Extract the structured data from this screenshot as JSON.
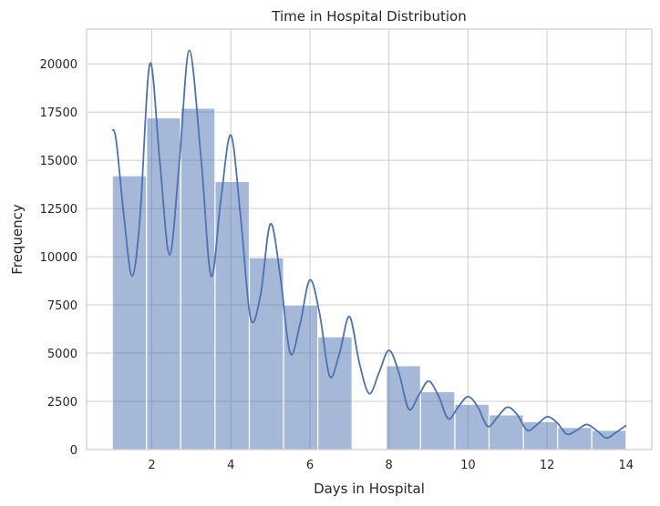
{
  "chart_data": {
    "type": "bar",
    "title": "Time in Hospital Distribution",
    "xlabel": "Days in Hospital",
    "ylabel": "Frequency",
    "xlim": [
      0.35,
      14.65
    ],
    "ylim": [
      0,
      21800
    ],
    "x_ticks": [
      2,
      4,
      6,
      8,
      10,
      12,
      14
    ],
    "y_ticks": [
      0,
      2500,
      5000,
      7500,
      10000,
      12500,
      15000,
      17500,
      20000
    ],
    "grid": true,
    "bins": [
      {
        "start": 1.0,
        "end": 1.867,
        "value": 14200
      },
      {
        "start": 1.867,
        "end": 2.733,
        "value": 17200
      },
      {
        "start": 2.733,
        "end": 3.6,
        "value": 17700
      },
      {
        "start": 3.6,
        "end": 4.467,
        "value": 13900
      },
      {
        "start": 4.467,
        "end": 5.333,
        "value": 9950
      },
      {
        "start": 5.333,
        "end": 6.2,
        "value": 7500
      },
      {
        "start": 6.2,
        "end": 7.067,
        "value": 5850
      },
      {
        "start": 7.067,
        "end": 7.933,
        "value": 0
      },
      {
        "start": 7.933,
        "end": 8.8,
        "value": 4350
      },
      {
        "start": 8.8,
        "end": 9.667,
        "value": 3000
      },
      {
        "start": 9.667,
        "end": 10.533,
        "value": 2350
      },
      {
        "start": 10.533,
        "end": 11.4,
        "value": 1800
      },
      {
        "start": 11.4,
        "end": 12.267,
        "value": 1450
      },
      {
        "start": 12.267,
        "end": 13.133,
        "value": 1150
      },
      {
        "start": 13.133,
        "end": 14.0,
        "value": 1000
      }
    ],
    "kde": {
      "x": [
        1.0,
        1.1,
        1.3,
        1.5,
        1.7,
        1.95,
        2.2,
        2.45,
        2.7,
        2.95,
        3.25,
        3.5,
        3.75,
        4.0,
        4.25,
        4.5,
        4.75,
        5.0,
        5.25,
        5.5,
        5.75,
        6.0,
        6.25,
        6.5,
        6.75,
        7.0,
        7.25,
        7.5,
        7.75,
        8.0,
        8.25,
        8.5,
        8.75,
        9.0,
        9.25,
        9.5,
        9.75,
        10.0,
        10.25,
        10.5,
        10.75,
        11.0,
        11.25,
        11.5,
        11.75,
        12.0,
        12.25,
        12.5,
        12.75,
        13.0,
        13.25,
        13.5,
        13.75,
        14.0
      ],
      "y": [
        16600,
        16000,
        12000,
        9000,
        12000,
        20000,
        15000,
        10100,
        15000,
        20700,
        15000,
        9000,
        13000,
        16300,
        12000,
        6800,
        8000,
        11700,
        9000,
        5000,
        6500,
        8800,
        7000,
        3800,
        5000,
        6900,
        4500,
        2900,
        4000,
        5150,
        4000,
        2100,
        2800,
        3550,
        2800,
        1600,
        2200,
        2750,
        2200,
        1200,
        1700,
        2200,
        1800,
        1000,
        1300,
        1700,
        1400,
        800,
        1000,
        1300,
        1000,
        600,
        900,
        1250
      ]
    }
  }
}
